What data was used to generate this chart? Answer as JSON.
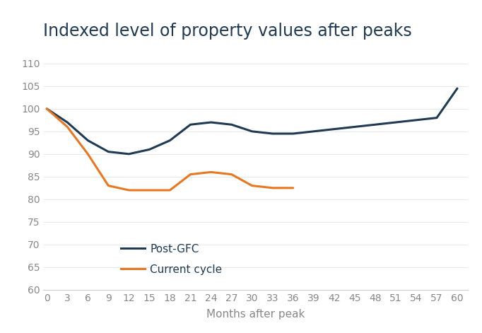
{
  "title": "Indexed level of property values after peaks",
  "xlabel": "Months after peak",
  "background_color": "#ffffff",
  "title_color": "#1f3a52",
  "axis_label_color": "#888888",
  "tick_label_color": "#888888",
  "ylim": [
    60,
    113
  ],
  "yticks": [
    60,
    65,
    70,
    75,
    80,
    85,
    90,
    95,
    100,
    105,
    110
  ],
  "xticks": [
    0,
    3,
    6,
    9,
    12,
    15,
    18,
    21,
    24,
    27,
    30,
    33,
    36,
    39,
    42,
    45,
    48,
    51,
    54,
    57,
    60
  ],
  "post_gfc": {
    "label": "Post-GFC",
    "color": "#1f3a52",
    "x": [
      0,
      3,
      6,
      9,
      12,
      15,
      18,
      21,
      24,
      27,
      30,
      33,
      36,
      39,
      42,
      45,
      48,
      51,
      54,
      57,
      60
    ],
    "y": [
      100,
      97,
      93,
      90.5,
      90,
      91,
      93,
      96.5,
      97,
      96.5,
      95,
      94.5,
      94.5,
      95,
      95.5,
      96,
      96.5,
      97,
      97.5,
      98,
      104.5
    ]
  },
  "current_cycle": {
    "label": "Current cycle",
    "color": "#e87722",
    "x": [
      0,
      3,
      6,
      9,
      12,
      15,
      18,
      21,
      24,
      27,
      30,
      33,
      36
    ],
    "y": [
      100,
      96,
      90,
      83,
      82,
      82,
      82,
      85.5,
      86,
      85.5,
      83,
      82.5,
      82.5
    ]
  },
  "line_width": 2.2,
  "title_fontsize": 17,
  "tick_fontsize": 10,
  "xlabel_fontsize": 11,
  "legend_fontsize": 11,
  "grid_color": "#e8e8e8",
  "spine_color": "#cccccc"
}
